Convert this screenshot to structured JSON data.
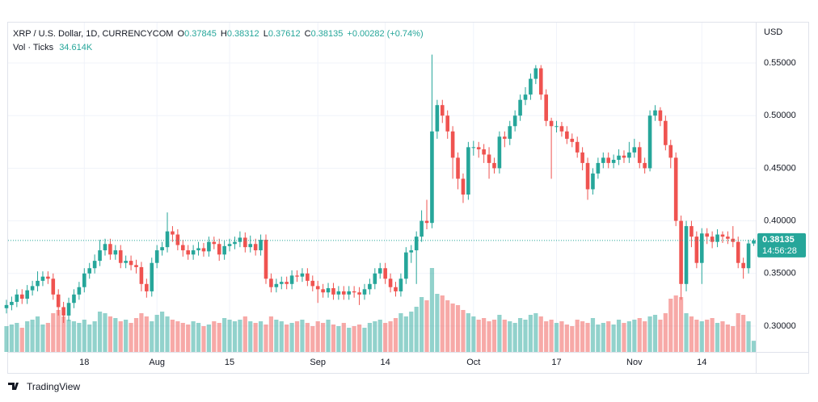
{
  "chart_data": {
    "type": "candlestick",
    "legend": {
      "symbol": "XRP / U.S. Dollar, 1D, CURRENCYCOM",
      "open_label": "O",
      "open": "0.37845",
      "high_label": "H",
      "high": "0.38312",
      "low_label": "L",
      "low": "0.37612",
      "close_label": "C",
      "close": "0.38135",
      "change": "+0.00282 (+0.74%)",
      "volume_title": "Vol · Ticks",
      "volume_value": "34.614K",
      "currency": "USD",
      "countdown": "14:56:28",
      "brand": "TradingView"
    },
    "up_color": "#26a69a",
    "down_color": "#ef5350",
    "grid": true,
    "ylim": [
      0.2754,
      0.5884
    ],
    "yticks": [
      {
        "value": 0.3,
        "label": "0.30000"
      },
      {
        "value": 0.35,
        "label": "0.35000"
      },
      {
        "value": 0.4,
        "label": "0.40000"
      },
      {
        "value": 0.45,
        "label": "0.45000"
      },
      {
        "value": 0.5,
        "label": "0.50000"
      },
      {
        "value": 0.55,
        "label": "0.55000"
      }
    ],
    "categories": [
      null,
      null,
      null,
      null,
      null,
      null,
      null,
      null,
      null,
      null,
      null,
      null,
      null,
      null,
      null,
      "18",
      null,
      null,
      null,
      null,
      null,
      null,
      null,
      null,
      null,
      null,
      null,
      null,
      null,
      "Aug",
      null,
      null,
      null,
      null,
      null,
      null,
      null,
      null,
      null,
      null,
      null,
      null,
      null,
      "15",
      null,
      null,
      null,
      null,
      null,
      null,
      null,
      null,
      null,
      null,
      null,
      null,
      null,
      null,
      null,
      null,
      "Sep",
      null,
      null,
      null,
      null,
      null,
      null,
      null,
      null,
      null,
      null,
      null,
      null,
      "14",
      null,
      null,
      null,
      null,
      null,
      null,
      null,
      null,
      null,
      null,
      null,
      null,
      null,
      null,
      null,
      null,
      "Oct",
      null,
      null,
      null,
      null,
      null,
      null,
      null,
      null,
      null,
      null,
      null,
      null,
      null,
      null,
      null,
      "17",
      null,
      null,
      null,
      null,
      null,
      null,
      null,
      null,
      null,
      null,
      null,
      null,
      null,
      null,
      "Nov",
      null,
      null,
      null,
      null,
      null,
      null,
      null,
      null,
      null,
      null,
      null,
      null,
      "14",
      null,
      null,
      null,
      null,
      null,
      null,
      null,
      null,
      null,
      null
    ],
    "open": [
      0.317,
      0.32,
      0.323,
      0.33,
      0.326,
      0.334,
      0.338,
      0.343,
      0.347,
      0.345,
      0.33,
      0.318,
      0.31,
      0.322,
      0.33,
      0.337,
      0.35,
      0.355,
      0.362,
      0.372,
      0.378,
      0.368,
      0.372,
      0.36,
      0.362,
      0.358,
      0.356,
      0.34,
      0.333,
      0.36,
      0.372,
      0.375,
      0.39,
      0.387,
      0.377,
      0.372,
      0.368,
      0.372,
      0.374,
      0.371,
      0.38,
      0.378,
      0.368,
      0.376,
      0.378,
      0.38,
      0.384,
      0.375,
      0.378,
      0.372,
      0.382,
      0.345,
      0.337,
      0.34,
      0.342,
      0.34,
      0.348,
      0.347,
      0.35,
      0.343,
      0.338,
      0.335,
      0.332,
      0.336,
      0.33,
      0.333,
      0.33,
      0.333,
      0.332,
      0.33,
      0.335,
      0.34,
      0.35,
      0.355,
      0.345,
      0.337,
      0.333,
      0.345,
      0.37,
      0.372,
      0.385,
      0.4,
      0.398,
      0.485,
      0.51,
      0.5,
      0.485,
      0.46,
      0.44,
      0.425,
      0.47,
      0.47,
      0.468,
      0.463,
      0.455,
      0.45,
      0.48,
      0.478,
      0.49,
      0.5,
      0.515,
      0.52,
      0.535,
      0.545,
      0.52,
      0.495,
      0.49,
      0.49,
      0.485,
      0.478,
      0.475,
      0.465,
      0.455,
      0.43,
      0.445,
      0.455,
      0.46,
      0.455,
      0.458,
      0.462,
      0.46,
      0.465,
      0.47,
      0.455,
      0.45,
      0.5,
      0.505,
      0.495,
      0.472,
      0.46,
      0.4,
      0.34,
      0.395,
      0.385,
      0.36,
      0.388,
      0.385,
      0.38,
      0.387,
      0.385,
      0.383,
      0.38,
      0.36,
      0.355,
      0.37845
    ],
    "high": [
      0.325,
      0.328,
      0.335,
      0.335,
      0.339,
      0.343,
      0.352,
      0.352,
      0.352,
      0.35,
      0.335,
      0.323,
      0.327,
      0.335,
      0.342,
      0.355,
      0.36,
      0.368,
      0.382,
      0.383,
      0.383,
      0.377,
      0.377,
      0.367,
      0.367,
      0.363,
      0.361,
      0.345,
      0.365,
      0.377,
      0.38,
      0.408,
      0.395,
      0.392,
      0.382,
      0.377,
      0.377,
      0.38,
      0.379,
      0.385,
      0.385,
      0.383,
      0.381,
      0.383,
      0.385,
      0.39,
      0.389,
      0.386,
      0.383,
      0.387,
      0.387,
      0.35,
      0.345,
      0.347,
      0.347,
      0.353,
      0.353,
      0.355,
      0.355,
      0.348,
      0.343,
      0.34,
      0.341,
      0.341,
      0.338,
      0.338,
      0.338,
      0.338,
      0.337,
      0.34,
      0.345,
      0.355,
      0.36,
      0.36,
      0.35,
      0.342,
      0.35,
      0.375,
      0.377,
      0.39,
      0.41,
      0.42,
      0.558,
      0.515,
      0.515,
      0.505,
      0.49,
      0.465,
      0.445,
      0.475,
      0.476,
      0.475,
      0.473,
      0.47,
      0.46,
      0.485,
      0.485,
      0.495,
      0.505,
      0.52,
      0.527,
      0.54,
      0.548,
      0.548,
      0.525,
      0.498,
      0.495,
      0.494,
      0.49,
      0.483,
      0.48,
      0.47,
      0.46,
      0.45,
      0.46,
      0.465,
      0.465,
      0.463,
      0.468,
      0.467,
      0.475,
      0.478,
      0.475,
      0.46,
      0.505,
      0.51,
      0.508,
      0.5,
      0.477,
      0.465,
      0.405,
      0.4,
      0.4,
      0.39,
      0.393,
      0.393,
      0.39,
      0.392,
      0.39,
      0.39,
      0.395,
      0.385,
      0.365,
      0.382,
      0.38312
    ],
    "low": [
      0.312,
      0.315,
      0.318,
      0.321,
      0.321,
      0.329,
      0.333,
      0.338,
      0.34,
      0.325,
      0.31,
      0.303,
      0.305,
      0.317,
      0.325,
      0.332,
      0.345,
      0.35,
      0.357,
      0.367,
      0.363,
      0.363,
      0.355,
      0.355,
      0.353,
      0.35,
      0.333,
      0.327,
      0.328,
      0.355,
      0.367,
      0.37,
      0.38,
      0.372,
      0.366,
      0.363,
      0.363,
      0.367,
      0.366,
      0.366,
      0.373,
      0.362,
      0.363,
      0.371,
      0.373,
      0.375,
      0.37,
      0.37,
      0.367,
      0.367,
      0.34,
      0.332,
      0.332,
      0.335,
      0.335,
      0.335,
      0.342,
      0.342,
      0.338,
      0.333,
      0.322,
      0.327,
      0.327,
      0.325,
      0.325,
      0.325,
      0.325,
      0.327,
      0.32,
      0.325,
      0.33,
      0.335,
      0.345,
      0.34,
      0.332,
      0.328,
      0.328,
      0.34,
      0.36,
      0.34,
      0.38,
      0.392,
      0.393,
      0.478,
      0.493,
      0.478,
      0.44,
      0.43,
      0.417,
      0.42,
      0.462,
      0.46,
      0.455,
      0.44,
      0.445,
      0.445,
      0.47,
      0.472,
      0.485,
      0.495,
      0.51,
      0.515,
      0.53,
      0.515,
      0.49,
      0.44,
      0.484,
      0.48,
      0.473,
      0.47,
      0.46,
      0.448,
      0.42,
      0.425,
      0.44,
      0.45,
      0.45,
      0.45,
      0.453,
      0.455,
      0.455,
      0.46,
      0.45,
      0.445,
      0.447,
      0.495,
      0.49,
      0.467,
      0.45,
      0.395,
      0.325,
      0.333,
      0.375,
      0.355,
      0.34,
      0.378,
      0.374,
      0.375,
      0.379,
      0.378,
      0.375,
      0.355,
      0.345,
      0.35,
      0.37612
    ],
    "close": [
      0.32,
      0.323,
      0.33,
      0.326,
      0.334,
      0.338,
      0.343,
      0.347,
      0.345,
      0.33,
      0.318,
      0.31,
      0.322,
      0.33,
      0.337,
      0.35,
      0.355,
      0.362,
      0.372,
      0.378,
      0.368,
      0.372,
      0.36,
      0.362,
      0.358,
      0.356,
      0.34,
      0.333,
      0.36,
      0.372,
      0.375,
      0.39,
      0.387,
      0.377,
      0.372,
      0.368,
      0.372,
      0.374,
      0.371,
      0.38,
      0.378,
      0.368,
      0.376,
      0.378,
      0.38,
      0.384,
      0.375,
      0.378,
      0.372,
      0.382,
      0.345,
      0.337,
      0.34,
      0.342,
      0.34,
      0.348,
      0.347,
      0.35,
      0.343,
      0.338,
      0.335,
      0.332,
      0.336,
      0.33,
      0.333,
      0.33,
      0.333,
      0.332,
      0.33,
      0.335,
      0.34,
      0.35,
      0.355,
      0.345,
      0.337,
      0.333,
      0.345,
      0.37,
      0.372,
      0.385,
      0.4,
      0.398,
      0.485,
      0.51,
      0.5,
      0.485,
      0.46,
      0.44,
      0.425,
      0.47,
      0.47,
      0.468,
      0.463,
      0.455,
      0.45,
      0.48,
      0.478,
      0.49,
      0.5,
      0.515,
      0.52,
      0.535,
      0.545,
      0.52,
      0.495,
      0.49,
      0.49,
      0.485,
      0.478,
      0.475,
      0.465,
      0.455,
      0.43,
      0.445,
      0.455,
      0.46,
      0.455,
      0.458,
      0.462,
      0.46,
      0.465,
      0.47,
      0.455,
      0.45,
      0.5,
      0.505,
      0.495,
      0.472,
      0.46,
      0.4,
      0.34,
      0.395,
      0.385,
      0.36,
      0.388,
      0.385,
      0.38,
      0.387,
      0.385,
      0.383,
      0.38,
      0.36,
      0.355,
      0.3785,
      0.38135
    ],
    "volume": [
      80,
      85,
      90,
      75,
      95,
      100,
      110,
      85,
      90,
      120,
      130,
      110,
      100,
      95,
      90,
      100,
      85,
      95,
      125,
      120,
      110,
      105,
      95,
      100,
      90,
      105,
      120,
      110,
      95,
      115,
      125,
      110,
      100,
      95,
      90,
      85,
      95,
      90,
      80,
      85,
      95,
      90,
      105,
      100,
      95,
      100,
      110,
      95,
      90,
      95,
      85,
      110,
      100,
      95,
      85,
      90,
      95,
      100,
      90,
      80,
      95,
      90,
      100,
      85,
      80,
      90,
      75,
      80,
      85,
      75,
      90,
      95,
      100,
      90,
      95,
      105,
      120,
      110,
      125,
      140,
      170,
      160,
      260,
      180,
      175,
      160,
      150,
      145,
      130,
      120,
      110,
      100,
      105,
      95,
      100,
      115,
      100,
      95,
      90,
      105,
      100,
      115,
      120,
      110,
      95,
      100,
      90,
      95,
      85,
      80,
      100,
      95,
      90,
      105,
      85,
      90,
      95,
      85,
      100,
      90,
      95,
      100,
      105,
      95,
      110,
      115,
      100,
      120,
      165,
      175,
      170,
      120,
      110,
      100,
      95,
      100,
      105,
      90,
      95,
      85,
      80,
      120,
      115,
      95,
      34.614
    ]
  }
}
